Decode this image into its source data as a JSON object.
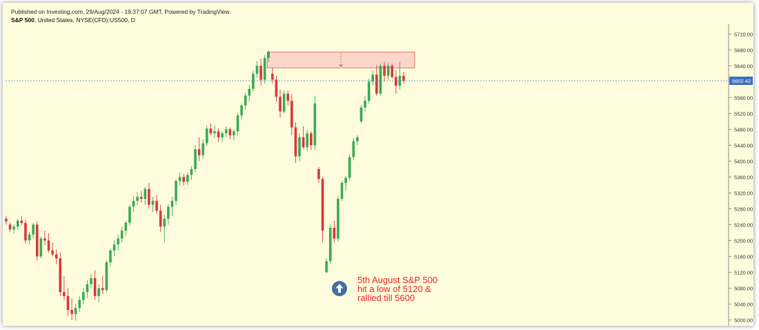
{
  "header": {
    "published": "Published on Investing.com, 29/Aug/2024 - 19:37:07 GMT, Powered by TradingView.",
    "symbol_bold": "S&P 500",
    "symbol_rest": ", United States, NYSE(CFD):US500, D"
  },
  "colors": {
    "background": "#fefcdc",
    "up": "#3aa956",
    "down": "#d9363e",
    "zone_fill": "#fcd5cb",
    "zone_stroke": "#e05a44",
    "price_line": "#4a7cc9",
    "price_label_bg": "#3b6fc4",
    "annotation": "#e8262b",
    "arrow_icon": "#3d6fa8"
  },
  "arrow_icon": "up-arrow-circle-icon",
  "chart_data": {
    "type": "candlestick",
    "ylim": [
      4985,
      5745
    ],
    "y_ticks": [
      "5720.00",
      "5680.00",
      "5640.00",
      "5600.00",
      "5560.00",
      "5520.00",
      "5480.00",
      "5440.00",
      "5400.00",
      "5360.00",
      "5320.00",
      "5280.00",
      "5240.00",
      "5200.00",
      "5160.00",
      "5120.00",
      "5080.00",
      "5040.00",
      "5000.00"
    ],
    "y_tick_values": [
      5720,
      5680,
      5640,
      5600,
      5560,
      5520,
      5480,
      5440,
      5400,
      5360,
      5320,
      5280,
      5240,
      5200,
      5160,
      5120,
      5080,
      5040,
      5000
    ],
    "last_price": 5602.42,
    "last_price_label": "5602.42",
    "resistance_zone": {
      "low": 5635,
      "high": 5675
    },
    "candles": [
      [
        5255,
        5262,
        5240,
        5248
      ],
      [
        5240,
        5245,
        5222,
        5228
      ],
      [
        5228,
        5240,
        5218,
        5235
      ],
      [
        5235,
        5255,
        5226,
        5250
      ],
      [
        5250,
        5262,
        5238,
        5244
      ],
      [
        5244,
        5252,
        5192,
        5200
      ],
      [
        5200,
        5222,
        5190,
        5215
      ],
      [
        5215,
        5245,
        5205,
        5240
      ],
      [
        5240,
        5248,
        5150,
        5160
      ],
      [
        5160,
        5210,
        5155,
        5205
      ],
      [
        5205,
        5225,
        5188,
        5200
      ],
      [
        5200,
        5218,
        5170,
        5175
      ],
      [
        5175,
        5195,
        5160,
        5165
      ],
      [
        5165,
        5178,
        5140,
        5155
      ],
      [
        5155,
        5170,
        5060,
        5070
      ],
      [
        5070,
        5110,
        5050,
        5060
      ],
      [
        5060,
        5080,
        5010,
        5025
      ],
      [
        5025,
        5055,
        5000,
        5015
      ],
      [
        5015,
        5040,
        4998,
        5030
      ],
      [
        5030,
        5060,
        5020,
        5050
      ],
      [
        5050,
        5080,
        5040,
        5070
      ],
      [
        5070,
        5100,
        5055,
        5090
      ],
      [
        5090,
        5115,
        5080,
        5105
      ],
      [
        5105,
        5125,
        5050,
        5060
      ],
      [
        5060,
        5090,
        5045,
        5080
      ],
      [
        5080,
        5110,
        5065,
        5075
      ],
      [
        5075,
        5150,
        5070,
        5145
      ],
      [
        5145,
        5180,
        5135,
        5175
      ],
      [
        5175,
        5200,
        5160,
        5190
      ],
      [
        5190,
        5215,
        5175,
        5205
      ],
      [
        5205,
        5235,
        5195,
        5225
      ],
      [
        5225,
        5250,
        5212,
        5245
      ],
      [
        5245,
        5290,
        5238,
        5285
      ],
      [
        5285,
        5312,
        5272,
        5300
      ],
      [
        5300,
        5322,
        5288,
        5310
      ],
      [
        5310,
        5325,
        5295,
        5305
      ],
      [
        5305,
        5335,
        5290,
        5330
      ],
      [
        5330,
        5345,
        5280,
        5290
      ],
      [
        5290,
        5310,
        5272,
        5300
      ],
      [
        5300,
        5315,
        5268,
        5275
      ],
      [
        5275,
        5290,
        5222,
        5235
      ],
      [
        5235,
        5265,
        5195,
        5255
      ],
      [
        5255,
        5292,
        5240,
        5285
      ],
      [
        5285,
        5310,
        5262,
        5300
      ],
      [
        5300,
        5355,
        5290,
        5350
      ],
      [
        5350,
        5372,
        5338,
        5360
      ],
      [
        5360,
        5368,
        5338,
        5348
      ],
      [
        5348,
        5372,
        5340,
        5365
      ],
      [
        5365,
        5388,
        5352,
        5380
      ],
      [
        5380,
        5440,
        5372,
        5430
      ],
      [
        5430,
        5460,
        5400,
        5415
      ],
      [
        5415,
        5455,
        5405,
        5445
      ],
      [
        5445,
        5490,
        5438,
        5482
      ],
      [
        5482,
        5495,
        5465,
        5470
      ],
      [
        5470,
        5490,
        5458,
        5475
      ],
      [
        5475,
        5482,
        5448,
        5460
      ],
      [
        5460,
        5475,
        5448,
        5470
      ],
      [
        5470,
        5488,
        5460,
        5480
      ],
      [
        5480,
        5485,
        5455,
        5465
      ],
      [
        5465,
        5480,
        5452,
        5475
      ],
      [
        5475,
        5522,
        5465,
        5515
      ],
      [
        5515,
        5545,
        5505,
        5540
      ],
      [
        5540,
        5572,
        5530,
        5565
      ],
      [
        5565,
        5592,
        5550,
        5582
      ],
      [
        5582,
        5628,
        5575,
        5620
      ],
      [
        5620,
        5652,
        5610,
        5640
      ],
      [
        5640,
        5658,
        5590,
        5605
      ],
      [
        5605,
        5668,
        5595,
        5660
      ],
      [
        5660,
        5680,
        5650,
        5675
      ],
      [
        5620,
        5635,
        5595,
        5605
      ],
      [
        5605,
        5615,
        5550,
        5562
      ],
      [
        5562,
        5580,
        5510,
        5525
      ],
      [
        5525,
        5578,
        5520,
        5570
      ],
      [
        5570,
        5578,
        5540,
        5552
      ],
      [
        5552,
        5568,
        5465,
        5485
      ],
      [
        5485,
        5498,
        5395,
        5412
      ],
      [
        5412,
        5470,
        5400,
        5460
      ],
      [
        5460,
        5488,
        5430,
        5435
      ],
      [
        5435,
        5478,
        5425,
        5470
      ],
      [
        5470,
        5475,
        5428,
        5440
      ],
      [
        5440,
        5565,
        5428,
        5545
      ],
      [
        5380,
        5385,
        5345,
        5355
      ],
      [
        5355,
        5360,
        5195,
        5225
      ],
      [
        5120,
        5155,
        5118,
        5148
      ],
      [
        5148,
        5240,
        5140,
        5232
      ],
      [
        5232,
        5250,
        5195,
        5205
      ],
      [
        5205,
        5312,
        5198,
        5305
      ],
      [
        5305,
        5350,
        5300,
        5345
      ],
      [
        5345,
        5362,
        5325,
        5358
      ],
      [
        5358,
        5418,
        5352,
        5410
      ],
      [
        5410,
        5458,
        5402,
        5450
      ],
      [
        5450,
        5465,
        5440,
        5460
      ],
      [
        5500,
        5542,
        5495,
        5535
      ],
      [
        5535,
        5565,
        5525,
        5552
      ],
      [
        5552,
        5608,
        5545,
        5600
      ],
      [
        5600,
        5628,
        5590,
        5618
      ],
      [
        5618,
        5642,
        5565,
        5570
      ],
      [
        5570,
        5645,
        5565,
        5640
      ],
      [
        5640,
        5650,
        5600,
        5615
      ],
      [
        5615,
        5648,
        5605,
        5640
      ],
      [
        5640,
        5645,
        5608,
        5612
      ],
      [
        5612,
        5630,
        5570,
        5590
      ],
      [
        5590,
        5650,
        5580,
        5615
      ],
      [
        5615,
        5625,
        5595,
        5602
      ]
    ]
  },
  "annotation": {
    "lines": [
      "5th August S&P 500",
      "hit a low of 5120 &",
      "rallied till 5600"
    ]
  }
}
